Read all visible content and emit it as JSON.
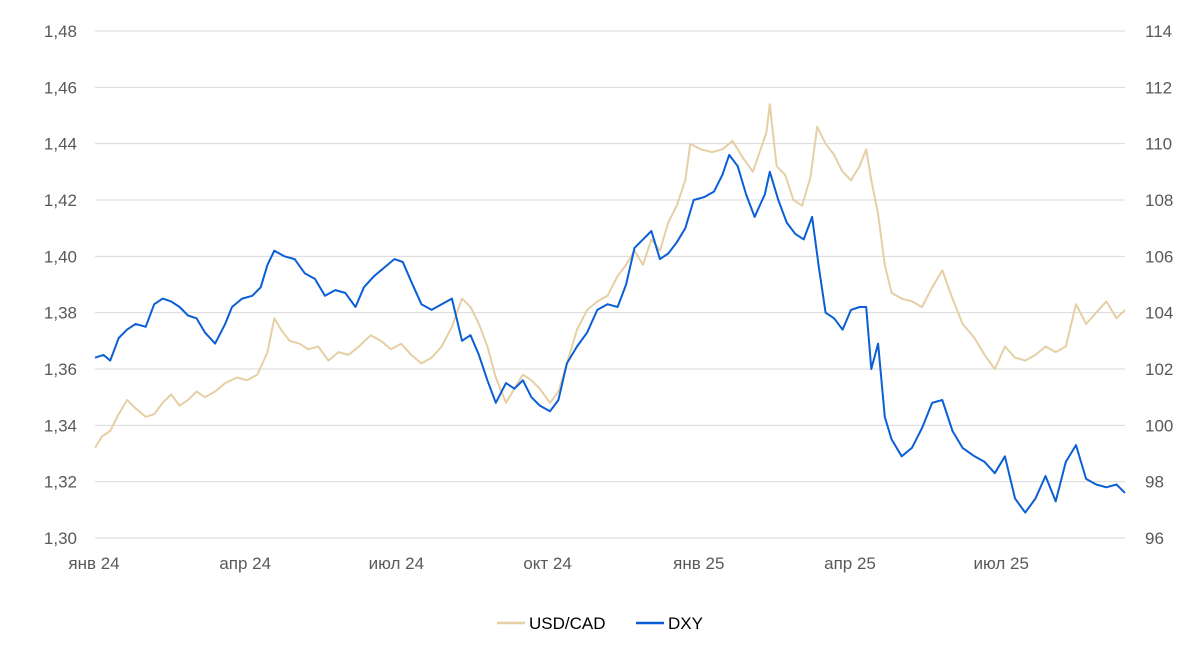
{
  "chart_data": {
    "type": "line",
    "x_labels": [
      "янв 24",
      "апр 24",
      "июл 24",
      "окт 24",
      "янв 25",
      "апр 25",
      "июл 25"
    ],
    "x_range": [
      "2024-01-01",
      "2025-09-01"
    ],
    "left_axis": {
      "range": [
        1.3,
        1.48
      ],
      "ticks": [
        "1,30",
        "1,32",
        "1,34",
        "1,36",
        "1,38",
        "1,40",
        "1,42",
        "1,44",
        "1,46",
        "1,48"
      ]
    },
    "right_axis": {
      "range": [
        96,
        114
      ],
      "ticks": [
        "96",
        "98",
        "100",
        "102",
        "104",
        "106",
        "108",
        "110",
        "112",
        "114"
      ]
    },
    "grid": true,
    "legend_position": "bottom",
    "series": [
      {
        "name": "USD/CAD",
        "axis": "left",
        "color": "#e6cfa4",
        "points": [
          [
            "2024-01-01",
            1.332
          ],
          [
            "2024-01-05",
            1.336
          ],
          [
            "2024-01-10",
            1.338
          ],
          [
            "2024-01-15",
            1.344
          ],
          [
            "2024-01-20",
            1.349
          ],
          [
            "2024-01-25",
            1.346
          ],
          [
            "2024-01-31",
            1.343
          ],
          [
            "2024-02-05",
            1.344
          ],
          [
            "2024-02-10",
            1.348
          ],
          [
            "2024-02-15",
            1.351
          ],
          [
            "2024-02-20",
            1.347
          ],
          [
            "2024-02-25",
            1.349
          ],
          [
            "2024-03-01",
            1.352
          ],
          [
            "2024-03-06",
            1.35
          ],
          [
            "2024-03-12",
            1.352
          ],
          [
            "2024-03-18",
            1.355
          ],
          [
            "2024-03-25",
            1.357
          ],
          [
            "2024-03-31",
            1.356
          ],
          [
            "2024-04-06",
            1.358
          ],
          [
            "2024-04-12",
            1.366
          ],
          [
            "2024-04-16",
            1.378
          ],
          [
            "2024-04-20",
            1.374
          ],
          [
            "2024-04-25",
            1.37
          ],
          [
            "2024-05-01",
            1.369
          ],
          [
            "2024-05-06",
            1.367
          ],
          [
            "2024-05-12",
            1.368
          ],
          [
            "2024-05-18",
            1.363
          ],
          [
            "2024-05-24",
            1.366
          ],
          [
            "2024-05-30",
            1.365
          ],
          [
            "2024-06-05",
            1.368
          ],
          [
            "2024-06-12",
            1.372
          ],
          [
            "2024-06-18",
            1.37
          ],
          [
            "2024-06-24",
            1.367
          ],
          [
            "2024-06-30",
            1.369
          ],
          [
            "2024-07-06",
            1.365
          ],
          [
            "2024-07-12",
            1.362
          ],
          [
            "2024-07-18",
            1.364
          ],
          [
            "2024-07-24",
            1.368
          ],
          [
            "2024-07-30",
            1.375
          ],
          [
            "2024-08-05",
            1.385
          ],
          [
            "2024-08-10",
            1.382
          ],
          [
            "2024-08-15",
            1.376
          ],
          [
            "2024-08-20",
            1.368
          ],
          [
            "2024-08-25",
            1.357
          ],
          [
            "2024-08-31",
            1.348
          ],
          [
            "2024-09-05",
            1.353
          ],
          [
            "2024-09-10",
            1.358
          ],
          [
            "2024-09-15",
            1.356
          ],
          [
            "2024-09-20",
            1.353
          ],
          [
            "2024-09-26",
            1.348
          ],
          [
            "2024-10-01",
            1.352
          ],
          [
            "2024-10-06",
            1.362
          ],
          [
            "2024-10-12",
            1.374
          ],
          [
            "2024-10-18",
            1.381
          ],
          [
            "2024-10-24",
            1.384
          ],
          [
            "2024-10-30",
            1.386
          ],
          [
            "2024-11-05",
            1.393
          ],
          [
            "2024-11-10",
            1.397
          ],
          [
            "2024-11-15",
            1.402
          ],
          [
            "2024-11-20",
            1.397
          ],
          [
            "2024-11-25",
            1.406
          ],
          [
            "2024-11-30",
            1.402
          ],
          [
            "2024-12-05",
            1.412
          ],
          [
            "2024-12-10",
            1.418
          ],
          [
            "2024-12-15",
            1.427
          ],
          [
            "2024-12-18",
            1.44
          ],
          [
            "2024-12-24",
            1.438
          ],
          [
            "2024-12-31",
            1.437
          ],
          [
            "2025-01-06",
            1.438
          ],
          [
            "2025-01-12",
            1.441
          ],
          [
            "2025-01-18",
            1.435
          ],
          [
            "2025-01-24",
            1.43
          ],
          [
            "2025-02-01",
            1.444
          ],
          [
            "2025-02-03",
            1.454
          ],
          [
            "2025-02-07",
            1.432
          ],
          [
            "2025-02-12",
            1.429
          ],
          [
            "2025-02-17",
            1.42
          ],
          [
            "2025-02-22",
            1.418
          ],
          [
            "2025-02-27",
            1.428
          ],
          [
            "2025-03-03",
            1.446
          ],
          [
            "2025-03-08",
            1.44
          ],
          [
            "2025-03-13",
            1.436
          ],
          [
            "2025-03-18",
            1.43
          ],
          [
            "2025-03-23",
            1.427
          ],
          [
            "2025-03-28",
            1.432
          ],
          [
            "2025-04-01",
            1.438
          ],
          [
            "2025-04-04",
            1.427
          ],
          [
            "2025-04-08",
            1.415
          ],
          [
            "2025-04-12",
            1.397
          ],
          [
            "2025-04-16",
            1.387
          ],
          [
            "2025-04-22",
            1.385
          ],
          [
            "2025-04-28",
            1.384
          ],
          [
            "2025-05-04",
            1.382
          ],
          [
            "2025-05-10",
            1.389
          ],
          [
            "2025-05-16",
            1.395
          ],
          [
            "2025-05-22",
            1.385
          ],
          [
            "2025-05-28",
            1.376
          ],
          [
            "2025-06-04",
            1.371
          ],
          [
            "2025-06-10",
            1.365
          ],
          [
            "2025-06-16",
            1.36
          ],
          [
            "2025-06-22",
            1.368
          ],
          [
            "2025-06-28",
            1.364
          ],
          [
            "2025-07-04",
            1.363
          ],
          [
            "2025-07-10",
            1.365
          ],
          [
            "2025-07-16",
            1.368
          ],
          [
            "2025-07-22",
            1.366
          ],
          [
            "2025-07-28",
            1.368
          ],
          [
            "2025-08-03",
            1.383
          ],
          [
            "2025-08-09",
            1.376
          ],
          [
            "2025-08-15",
            1.38
          ],
          [
            "2025-08-21",
            1.384
          ],
          [
            "2025-08-27",
            1.378
          ],
          [
            "2025-09-01",
            1.381
          ]
        ]
      },
      {
        "name": "DXY",
        "axis": "right",
        "color": "#0a5fd6",
        "points": [
          [
            "2024-01-01",
            102.4
          ],
          [
            "2024-01-06",
            102.5
          ],
          [
            "2024-01-10",
            102.3
          ],
          [
            "2024-01-15",
            103.1
          ],
          [
            "2024-01-20",
            103.4
          ],
          [
            "2024-01-25",
            103.6
          ],
          [
            "2024-01-31",
            103.5
          ],
          [
            "2024-02-05",
            104.3
          ],
          [
            "2024-02-10",
            104.5
          ],
          [
            "2024-02-15",
            104.4
          ],
          [
            "2024-02-20",
            104.2
          ],
          [
            "2024-02-25",
            103.9
          ],
          [
            "2024-03-01",
            103.8
          ],
          [
            "2024-03-06",
            103.3
          ],
          [
            "2024-03-12",
            102.9
          ],
          [
            "2024-03-18",
            103.6
          ],
          [
            "2024-03-22",
            104.2
          ],
          [
            "2024-03-28",
            104.5
          ],
          [
            "2024-04-03",
            104.6
          ],
          [
            "2024-04-08",
            104.9
          ],
          [
            "2024-04-12",
            105.7
          ],
          [
            "2024-04-16",
            106.2
          ],
          [
            "2024-04-22",
            106.0
          ],
          [
            "2024-04-28",
            105.9
          ],
          [
            "2024-05-04",
            105.4
          ],
          [
            "2024-05-10",
            105.2
          ],
          [
            "2024-05-16",
            104.6
          ],
          [
            "2024-05-22",
            104.8
          ],
          [
            "2024-05-28",
            104.7
          ],
          [
            "2024-06-03",
            104.2
          ],
          [
            "2024-06-08",
            104.9
          ],
          [
            "2024-06-14",
            105.3
          ],
          [
            "2024-06-20",
            105.6
          ],
          [
            "2024-06-26",
            105.9
          ],
          [
            "2024-07-01",
            105.8
          ],
          [
            "2024-07-06",
            105.1
          ],
          [
            "2024-07-12",
            104.3
          ],
          [
            "2024-07-18",
            104.1
          ],
          [
            "2024-07-24",
            104.3
          ],
          [
            "2024-07-30",
            104.5
          ],
          [
            "2024-08-05",
            103.0
          ],
          [
            "2024-08-10",
            103.2
          ],
          [
            "2024-08-15",
            102.5
          ],
          [
            "2024-08-20",
            101.6
          ],
          [
            "2024-08-25",
            100.8
          ],
          [
            "2024-08-31",
            101.5
          ],
          [
            "2024-09-05",
            101.3
          ],
          [
            "2024-09-10",
            101.6
          ],
          [
            "2024-09-15",
            101.0
          ],
          [
            "2024-09-20",
            100.7
          ],
          [
            "2024-09-26",
            100.5
          ],
          [
            "2024-10-01",
            100.9
          ],
          [
            "2024-10-06",
            102.2
          ],
          [
            "2024-10-12",
            102.8
          ],
          [
            "2024-10-18",
            103.3
          ],
          [
            "2024-10-24",
            104.1
          ],
          [
            "2024-10-30",
            104.3
          ],
          [
            "2024-11-05",
            104.2
          ],
          [
            "2024-11-10",
            105.0
          ],
          [
            "2024-11-15",
            106.3
          ],
          [
            "2024-11-20",
            106.6
          ],
          [
            "2024-11-25",
            106.9
          ],
          [
            "2024-11-30",
            105.9
          ],
          [
            "2024-12-05",
            106.1
          ],
          [
            "2024-12-10",
            106.5
          ],
          [
            "2024-12-15",
            107.0
          ],
          [
            "2024-12-20",
            108.0
          ],
          [
            "2024-12-26",
            108.1
          ],
          [
            "2025-01-01",
            108.3
          ],
          [
            "2025-01-06",
            108.9
          ],
          [
            "2025-01-10",
            109.6
          ],
          [
            "2025-01-15",
            109.2
          ],
          [
            "2025-01-20",
            108.2
          ],
          [
            "2025-01-25",
            107.4
          ],
          [
            "2025-01-31",
            108.2
          ],
          [
            "2025-02-03",
            109.0
          ],
          [
            "2025-02-08",
            108.0
          ],
          [
            "2025-02-13",
            107.2
          ],
          [
            "2025-02-18",
            106.8
          ],
          [
            "2025-02-23",
            106.6
          ],
          [
            "2025-02-28",
            107.4
          ],
          [
            "2025-03-04",
            105.6
          ],
          [
            "2025-03-08",
            104.0
          ],
          [
            "2025-03-13",
            103.8
          ],
          [
            "2025-03-18",
            103.4
          ],
          [
            "2025-03-23",
            104.1
          ],
          [
            "2025-03-28",
            104.2
          ],
          [
            "2025-04-01",
            104.2
          ],
          [
            "2025-04-04",
            102.0
          ],
          [
            "2025-04-08",
            102.9
          ],
          [
            "2025-04-12",
            100.3
          ],
          [
            "2025-04-16",
            99.5
          ],
          [
            "2025-04-22",
            98.9
          ],
          [
            "2025-04-28",
            99.2
          ],
          [
            "2025-05-04",
            99.9
          ],
          [
            "2025-05-10",
            100.8
          ],
          [
            "2025-05-16",
            100.9
          ],
          [
            "2025-05-22",
            99.8
          ],
          [
            "2025-05-28",
            99.2
          ],
          [
            "2025-06-04",
            98.9
          ],
          [
            "2025-06-10",
            98.7
          ],
          [
            "2025-06-16",
            98.3
          ],
          [
            "2025-06-22",
            98.9
          ],
          [
            "2025-06-28",
            97.4
          ],
          [
            "2025-07-04",
            96.9
          ],
          [
            "2025-07-10",
            97.4
          ],
          [
            "2025-07-16",
            98.2
          ],
          [
            "2025-07-22",
            97.3
          ],
          [
            "2025-07-28",
            98.7
          ],
          [
            "2025-08-03",
            99.3
          ],
          [
            "2025-08-09",
            98.1
          ],
          [
            "2025-08-15",
            97.9
          ],
          [
            "2025-08-21",
            97.8
          ],
          [
            "2025-08-27",
            97.9
          ],
          [
            "2025-09-01",
            97.6
          ]
        ]
      }
    ]
  }
}
